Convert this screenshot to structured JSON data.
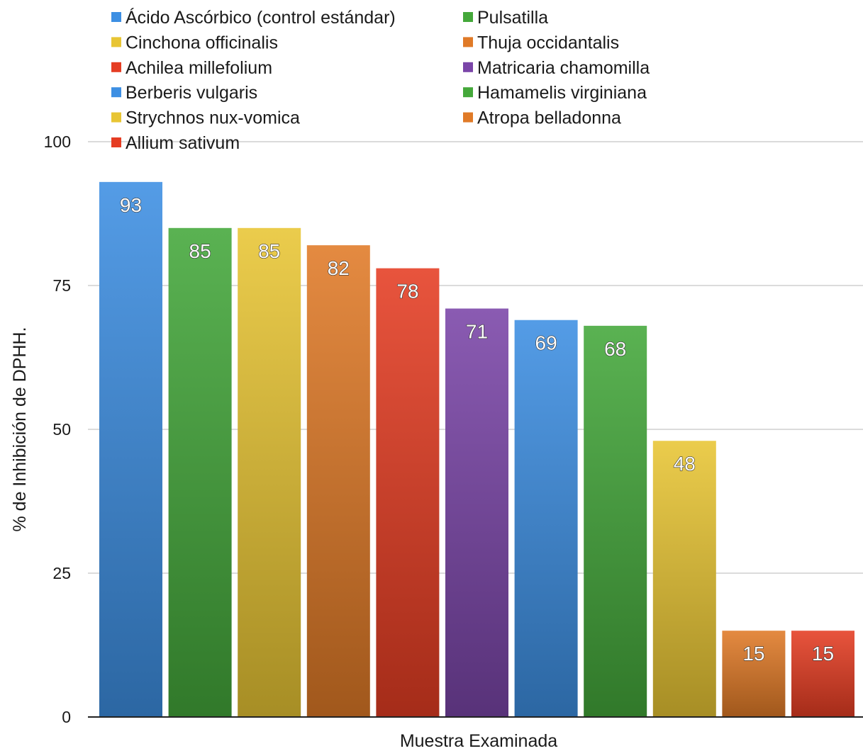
{
  "chart_data": {
    "type": "bar",
    "title": "",
    "xlabel": "Muestra Examinada",
    "ylabel": "% de Inhibición de DPHH.",
    "ylim": [
      0,
      100
    ],
    "yticks": [
      "0",
      "25",
      "50",
      "75",
      "100"
    ],
    "grid": true,
    "legend_position": "top",
    "series": [
      {
        "name": "Ácido Ascórbico (control estándar)",
        "value": 93,
        "color": "#3d8fe3"
      },
      {
        "name": "Pulsatilla",
        "value": 85,
        "color": "#44a83a"
      },
      {
        "name": "Cinchona officinalis",
        "value": 85,
        "color": "#e8c534"
      },
      {
        "name": "Thuja occidantalis",
        "value": 82,
        "color": "#e07a27"
      },
      {
        "name": "Achilea millefolium",
        "value": 78,
        "color": "#e53d23"
      },
      {
        "name": "Matricaria chamomilla",
        "value": 71,
        "color": "#7a45a8"
      },
      {
        "name": "Berberis vulgaris",
        "value": 69,
        "color": "#3d8fe3"
      },
      {
        "name": "Hamamelis virginiana",
        "value": 68,
        "color": "#44a83a"
      },
      {
        "name": "Strychnos nux-vomica",
        "value": 48,
        "color": "#e8c534"
      },
      {
        "name": "Atropa belladonna",
        "value": 15,
        "color": "#e07a27"
      },
      {
        "name": "Allium sativum",
        "value": 15,
        "color": "#e53d23"
      }
    ]
  }
}
